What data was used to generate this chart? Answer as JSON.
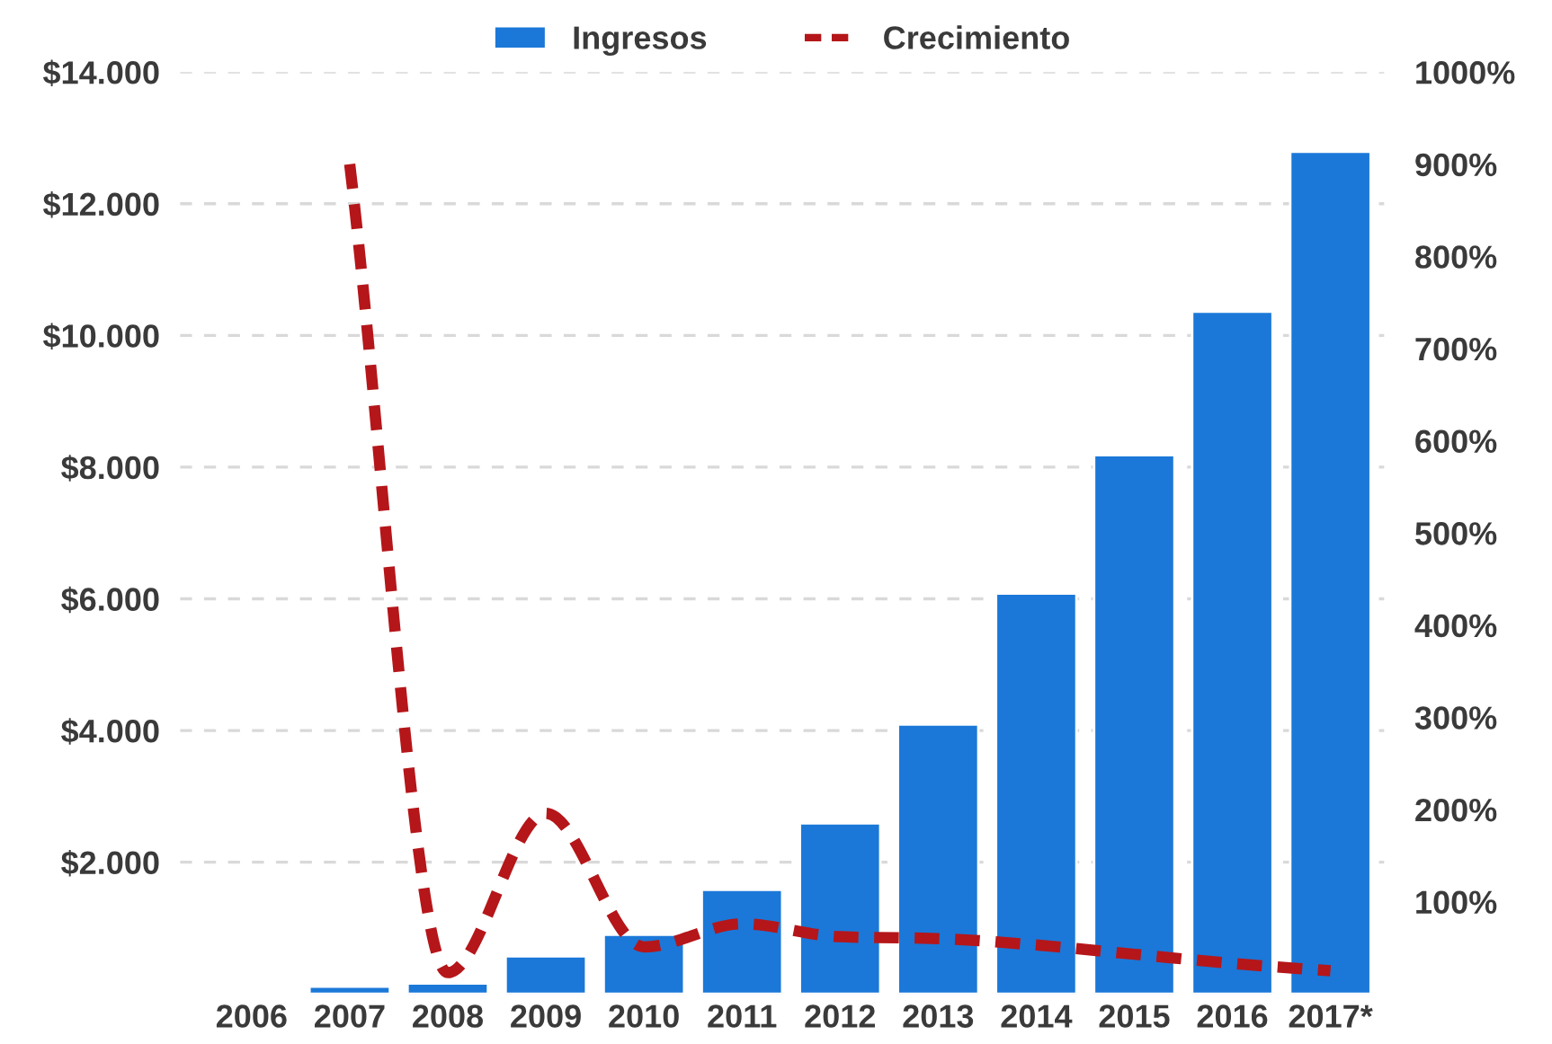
{
  "chart_data": {
    "type": "bar",
    "categories": [
      "2006",
      "2007",
      "2008",
      "2009",
      "2010",
      "2011",
      "2012",
      "2013",
      "2014",
      "2015",
      "2016",
      "2017*"
    ],
    "series": [
      {
        "name": "Ingresos",
        "color": "#1b78d8",
        "values": [
          null,
          110,
          160,
          570,
          900,
          1580,
          2590,
          4090,
          6080,
          8180,
          10360,
          12790
        ]
      },
      {
        "name": "Crecimiento",
        "type": "line",
        "axis": "y2",
        "color": "#b5161a",
        "line_style": "dashed",
        "values": [
          null,
          900,
          23,
          196,
          51,
          76,
          62,
          60,
          53,
          43,
          33,
          25
        ]
      }
    ],
    "ylim": [
      0,
      14000
    ],
    "yticks": [
      {
        "value": 2000,
        "label": "$2.000"
      },
      {
        "value": 4000,
        "label": "$4.000"
      },
      {
        "value": 6000,
        "label": "$6.000"
      },
      {
        "value": 8000,
        "label": "$8.000"
      },
      {
        "value": 10000,
        "label": "$10.000"
      },
      {
        "value": 12000,
        "label": "$12.000"
      },
      {
        "value": 14000,
        "label": "$14.000"
      }
    ],
    "y2lim": [
      0,
      1000
    ],
    "y2ticks": [
      {
        "value": 100,
        "label": "100%"
      },
      {
        "value": 200,
        "label": "200%"
      },
      {
        "value": 300,
        "label": "300%"
      },
      {
        "value": 400,
        "label": "400%"
      },
      {
        "value": 500,
        "label": "500%"
      },
      {
        "value": 600,
        "label": "600%"
      },
      {
        "value": 700,
        "label": "700%"
      },
      {
        "value": 800,
        "label": "800%"
      },
      {
        "value": 900,
        "label": "900%"
      },
      {
        "value": 1000,
        "label": "1000%"
      }
    ],
    "grid": "y",
    "legend": "top"
  }
}
